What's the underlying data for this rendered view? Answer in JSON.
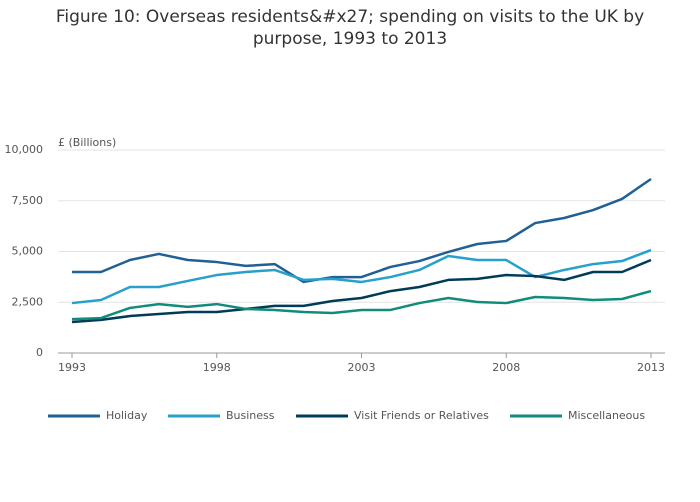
{
  "chart_data": {
    "type": "line",
    "title": "Figure 10: Overseas residents&#x27; spending on visits to the UK by purpose, 1993 to 2013",
    "y_label": "£ (Billions)",
    "x": [
      1993,
      1994,
      1995,
      1996,
      1997,
      1998,
      1999,
      2000,
      2001,
      2002,
      2003,
      2004,
      2005,
      2006,
      2007,
      2008,
      2009,
      2010,
      2011,
      2012,
      2013
    ],
    "xlim": [
      1993,
      2013
    ],
    "xticks": [
      1993,
      1998,
      2003,
      2008,
      2013
    ],
    "ylim": [
      0,
      10000
    ],
    "yticks": [
      0,
      {
        "value": 2500,
        "label": "2,500"
      },
      {
        "value": 5000,
        "label": "5,000"
      },
      {
        "value": 7500,
        "label": "7,500"
      },
      {
        "value": 10000,
        "label": "10,000"
      }
    ],
    "grid": true,
    "legend": "bottom",
    "series": [
      {
        "name": "Holiday",
        "color": "#206095",
        "values": [
          3990,
          3990,
          4580,
          4880,
          4580,
          4480,
          4290,
          4380,
          3500,
          3740,
          3740,
          4240,
          4530,
          4980,
          5370,
          5520,
          6400,
          6650,
          7040,
          7590,
          8570
        ]
      },
      {
        "name": "Business",
        "color": "#27a0cc",
        "values": [
          2460,
          2610,
          3250,
          3250,
          3550,
          3840,
          3990,
          4090,
          3600,
          3650,
          3500,
          3740,
          4090,
          4780,
          4580,
          4580,
          3740,
          4090,
          4380,
          4530,
          5070
        ]
      },
      {
        "name": "Visit Friends or Relatives",
        "color": "#003c57",
        "values": [
          1530,
          1630,
          1820,
          1920,
          2020,
          2020,
          2170,
          2320,
          2320,
          2560,
          2710,
          3050,
          3250,
          3600,
          3650,
          3840,
          3790,
          3600,
          3990,
          3990,
          4580
        ]
      },
      {
        "name": "Miscellaneous",
        "color": "#118c7b",
        "values": [
          1670,
          1720,
          2220,
          2410,
          2270,
          2410,
          2170,
          2120,
          2020,
          1970,
          2120,
          2120,
          2460,
          2710,
          2510,
          2460,
          2760,
          2710,
          2610,
          2660,
          3050
        ]
      }
    ]
  }
}
